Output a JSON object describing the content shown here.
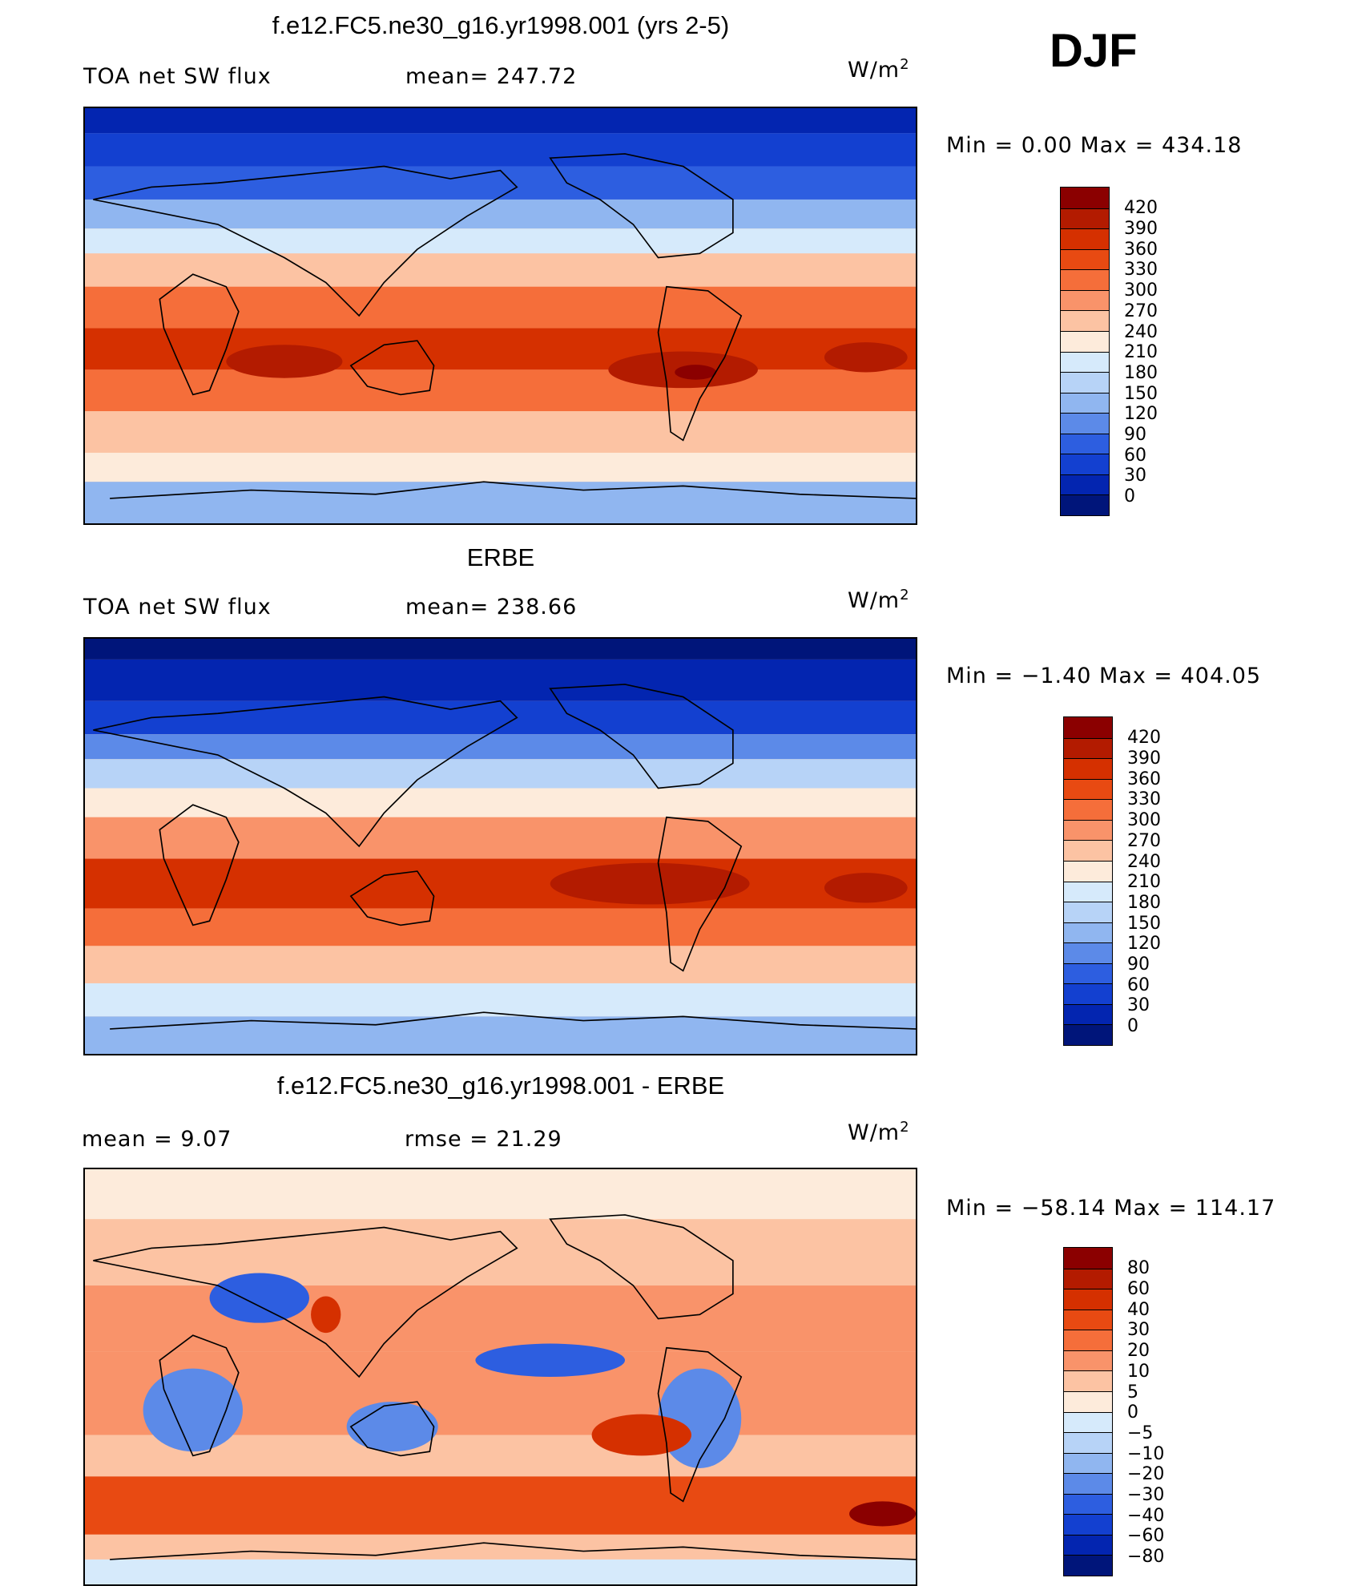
{
  "season": "DJF",
  "panels": [
    {
      "id": "model",
      "title": "f.e12.FC5.ne30_g16.yr1998.001 (yrs 2-5)",
      "left_label": "TOA net SW flux",
      "center_label": "mean= 247.72",
      "units": "W/m",
      "units_sup": "2",
      "minmax": "Min =    0.00 Max = 434.18",
      "colorbar": {
        "colors": [
          "#8b0000",
          "#b31b00",
          "#d53000",
          "#e84a12",
          "#f56e3a",
          "#f9936a",
          "#fcc3a3",
          "#fdebdb",
          "#d6eafb",
          "#b7d3f7",
          "#90b6f0",
          "#5c8ae8",
          "#2d5ee0",
          "#1340d0",
          "#0325b0",
          "#00157a"
        ],
        "ticks": [
          "420",
          "390",
          "360",
          "330",
          "300",
          "270",
          "240",
          "210",
          "180",
          "150",
          "120",
          "90",
          "60",
          "30",
          "0"
        ]
      }
    },
    {
      "id": "obs",
      "title": "ERBE",
      "left_label": "TOA net SW flux",
      "center_label": "mean= 238.66",
      "units": "W/m",
      "units_sup": "2",
      "minmax": "Min =  −1.40 Max = 404.05",
      "colorbar": {
        "colors": [
          "#8b0000",
          "#b31b00",
          "#d53000",
          "#e84a12",
          "#f56e3a",
          "#f9936a",
          "#fcc3a3",
          "#fdebdb",
          "#d6eafb",
          "#b7d3f7",
          "#90b6f0",
          "#5c8ae8",
          "#2d5ee0",
          "#1340d0",
          "#0325b0",
          "#00157a"
        ],
        "ticks": [
          "420",
          "390",
          "360",
          "330",
          "300",
          "270",
          "240",
          "210",
          "180",
          "150",
          "120",
          "90",
          "60",
          "30",
          "0"
        ]
      }
    },
    {
      "id": "diff",
      "title": "f.e12.FC5.ne30_g16.yr1998.001 - ERBE",
      "left_label": "mean =     9.07",
      "center_label": "rmse =    21.29",
      "units": "W/m",
      "units_sup": "2",
      "minmax": "Min = −58.14 Max = 114.17",
      "colorbar": {
        "colors": [
          "#8b0000",
          "#b31b00",
          "#d53000",
          "#e84a12",
          "#f56e3a",
          "#f9936a",
          "#fcc3a3",
          "#fdebdb",
          "#d6eafb",
          "#b7d3f7",
          "#90b6f0",
          "#5c8ae8",
          "#2d5ee0",
          "#1340d0",
          "#0325b0",
          "#00157a"
        ],
        "ticks": [
          "80",
          "60",
          "40",
          "30",
          "20",
          "10",
          "5",
          "0",
          "−5",
          "−10",
          "−20",
          "−30",
          "−40",
          "−60",
          "−80"
        ]
      }
    }
  ],
  "chart_data": {
    "type": "heatmap",
    "title": "TOA net SW flux, DJF",
    "units": "W/m2",
    "panels": [
      {
        "name": "f.e12.FC5.ne30_g16.yr1998.001 (yrs 2-5)",
        "mean": 247.72,
        "min": 0.0,
        "max": 434.18,
        "contour_levels": [
          0,
          30,
          60,
          90,
          120,
          150,
          180,
          210,
          240,
          270,
          300,
          330,
          360,
          390,
          420
        ]
      },
      {
        "name": "ERBE",
        "mean": 238.66,
        "min": -1.4,
        "max": 404.05,
        "contour_levels": [
          0,
          30,
          60,
          90,
          120,
          150,
          180,
          210,
          240,
          270,
          300,
          330,
          360,
          390,
          420
        ]
      },
      {
        "name": "f.e12.FC5.ne30_g16.yr1998.001 - ERBE",
        "mean": 9.07,
        "rmse": 21.29,
        "min": -58.14,
        "max": 114.17,
        "contour_levels": [
          -80,
          -60,
          -40,
          -30,
          -20,
          -10,
          -5,
          0,
          5,
          10,
          20,
          30,
          40,
          60,
          80
        ]
      }
    ]
  }
}
